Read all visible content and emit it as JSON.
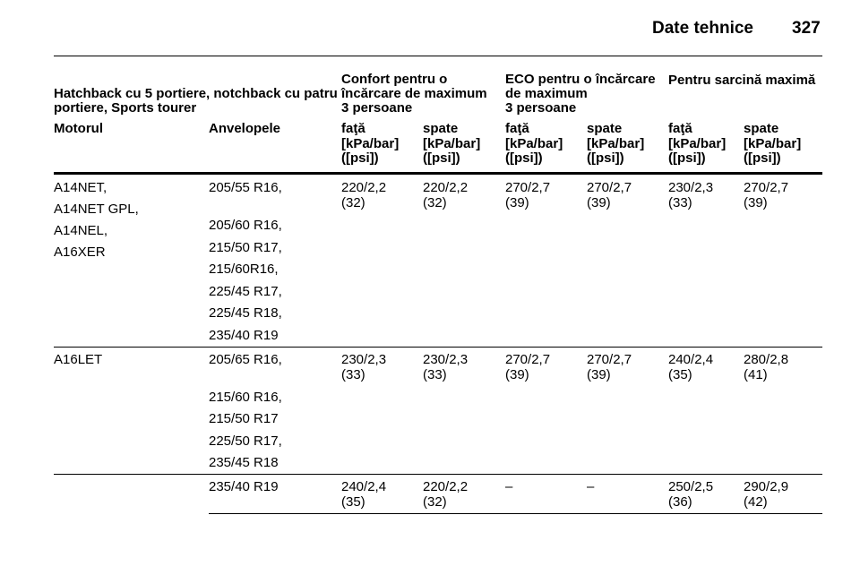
{
  "header": {
    "title": "Date tehnice",
    "page": "327"
  },
  "table": {
    "group_headers": [
      [
        "Hatchback cu 5 portiere, notchback cu patru",
        "portiere, Sports tourer"
      ],
      [
        "Confort pentru o",
        "încărcare de maximum",
        "3 persoane"
      ],
      [
        "ECO pentru o încărcare",
        "de maximum",
        "3 persoane"
      ],
      [
        "Pentru sarcină maximă"
      ]
    ],
    "columns": [
      "Motorul",
      "Anvelopele",
      "faţă",
      "spate",
      "faţă",
      "spate",
      "faţă",
      "spate"
    ],
    "units": [
      [
        "[kPa/bar]",
        "([psi])"
      ],
      [
        "[kPa/bar]",
        "([psi])"
      ],
      [
        "[kPa/bar]",
        "([psi])"
      ],
      [
        "[kPa/bar]",
        "([psi])"
      ],
      [
        "[kPa/bar]",
        "([psi])"
      ],
      [
        "[kPa/bar]",
        "([psi])"
      ]
    ],
    "rows": [
      {
        "engines": [
          "A14NET,",
          "A14NET GPL,",
          "A14NEL,",
          "A16XER"
        ],
        "tires": [
          "205/55 R16,",
          "205/60 R16,",
          "215/50 R17,",
          "215/60R16,",
          "225/45 R17,",
          "225/45 R18,",
          "235/40 R19"
        ],
        "values": [
          [
            "220/2,2",
            "(32)"
          ],
          [
            "220/2,2",
            "(32)"
          ],
          [
            "270/2,7",
            "(39)"
          ],
          [
            "270/2,7",
            "(39)"
          ],
          [
            "230/2,3",
            "(33)"
          ],
          [
            "270/2,7",
            "(39)"
          ]
        ]
      },
      {
        "engines": [
          "A16LET"
        ],
        "tires": [
          "205/65 R16,",
          "215/60 R16,",
          "215/50 R17",
          "225/50 R17,",
          "235/45 R18"
        ],
        "values": [
          [
            "230/2,3",
            "(33)"
          ],
          [
            "230/2,3",
            "(33)"
          ],
          [
            "270/2,7",
            "(39)"
          ],
          [
            "270/2,7",
            "(39)"
          ],
          [
            "240/2,4",
            "(35)"
          ],
          [
            "280/2,8",
            "(41)"
          ]
        ]
      },
      {
        "engines": [],
        "tires": [
          "235/40 R19"
        ],
        "values": [
          [
            "240/2,4",
            "(35)"
          ],
          [
            "220/2,2",
            "(32)"
          ],
          [
            "–"
          ],
          [
            "–"
          ],
          [
            "250/2,5",
            "(36)"
          ],
          [
            "290/2,9",
            "(42)"
          ]
        ]
      }
    ]
  }
}
